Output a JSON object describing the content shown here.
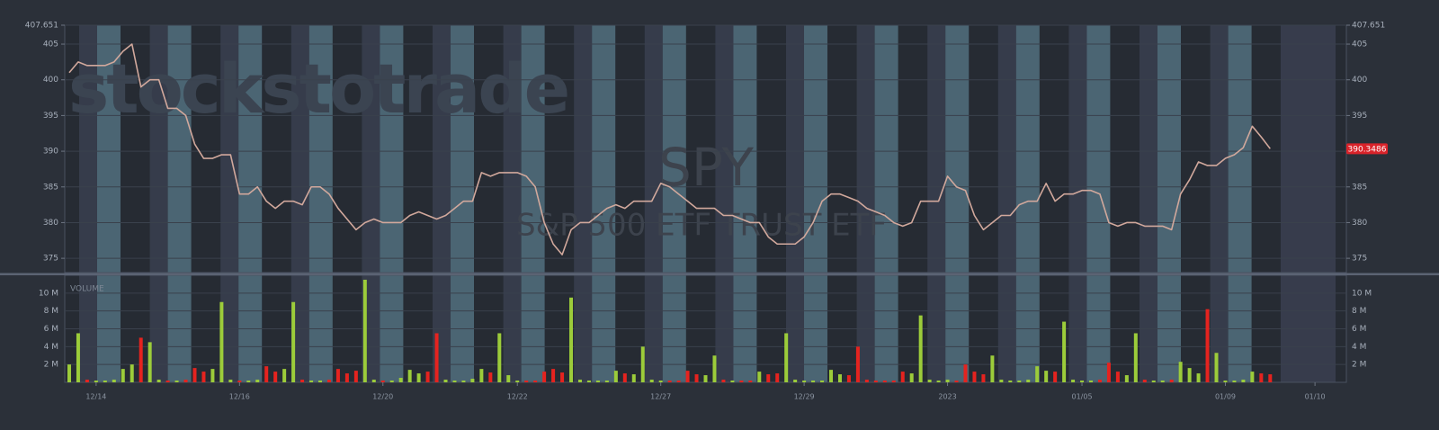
{
  "chart_data": {
    "type": "line",
    "watermark": "stockstotrade",
    "title": "SPY",
    "subtitle": "S&P 500 ETF TRUST ETF",
    "volume_label": "VOLUME",
    "last_value_label": "390.3486",
    "categories": [
      null,
      null,
      null,
      "12/14",
      null,
      null,
      null,
      null,
      null,
      null,
      null,
      null,
      null,
      null,
      null,
      null,
      null,
      null,
      null,
      "12/16",
      null,
      null,
      null,
      null,
      null,
      null,
      null,
      null,
      null,
      null,
      null,
      null,
      null,
      null,
      null,
      "12/20",
      null,
      null,
      null,
      null,
      null,
      null,
      null,
      null,
      null,
      null,
      null,
      null,
      null,
      null,
      "12/22",
      null,
      null,
      null,
      null,
      null,
      null,
      null,
      null,
      null,
      null,
      null,
      null,
      null,
      null,
      null,
      "12/27",
      null,
      null,
      null,
      null,
      null,
      null,
      null,
      null,
      null,
      null,
      null,
      null,
      null,
      null,
      null,
      "12/29",
      null,
      null,
      null,
      null,
      null,
      null,
      null,
      null,
      null,
      null,
      null,
      null,
      null,
      null,
      null,
      "2023",
      null,
      null,
      null,
      null,
      null,
      null,
      null,
      null,
      null,
      null,
      null,
      null,
      null,
      null,
      "01/05",
      null,
      null,
      null,
      null,
      null,
      null,
      null,
      null,
      null,
      null,
      null,
      null,
      null,
      null,
      null,
      "01/09",
      null,
      null,
      null,
      null,
      null,
      null,
      null,
      null,
      null,
      "01/10",
      null,
      null,
      null
    ],
    "series": [
      {
        "name": "SPY",
        "color": "#d1a89c",
        "values": [
          401,
          402.5,
          402,
          402,
          402,
          402.5,
          404,
          405,
          399,
          400,
          400,
          396,
          396,
          395,
          391,
          389,
          389,
          389.5,
          389.5,
          384,
          384,
          385,
          383,
          382,
          383,
          383,
          382.5,
          385,
          385,
          384,
          382,
          380.5,
          379,
          380,
          380.5,
          380,
          380,
          380,
          381,
          381.5,
          381,
          380.5,
          381,
          382,
          383,
          383,
          387,
          386.5,
          387,
          387,
          387,
          386.5,
          385,
          380,
          377,
          375.5,
          379,
          380,
          380,
          381,
          382,
          382.5,
          382,
          383,
          383,
          383,
          385.5,
          385,
          384,
          383,
          382,
          382,
          382,
          381,
          381,
          380.5,
          380,
          380,
          378,
          377,
          377,
          377,
          378,
          380,
          383,
          384,
          384,
          383.5,
          383,
          382,
          381.5,
          381,
          380,
          379.5,
          380,
          383,
          383,
          383,
          386.5,
          385,
          384.5,
          381,
          379,
          380,
          381,
          381,
          382.5,
          383,
          383,
          385.5,
          383,
          384,
          384,
          384.5,
          384.5,
          384,
          380,
          379.5,
          380,
          380,
          379.5,
          379.5,
          379.5,
          379,
          384,
          386,
          388.5,
          388,
          388,
          389,
          389.5,
          390.5,
          393.5,
          392,
          390.3486,
          null,
          null,
          null,
          null,
          null,
          null,
          null,
          null
        ]
      },
      {
        "name": "VOLUME",
        "axis": "y2",
        "up_color": "#9ccc3a",
        "down_color": "#e5231f",
        "values": [
          2,
          5.5,
          0.3,
          0.2,
          0.2,
          0.3,
          1.5,
          2,
          5,
          4.5,
          0.3,
          0.2,
          0.2,
          0.3,
          1.6,
          1.2,
          1.5,
          9,
          0.3,
          0.2,
          0.2,
          0.3,
          1.8,
          1.2,
          1.5,
          9,
          0.3,
          0.2,
          0.2,
          0.3,
          1.5,
          1,
          1.3,
          11.5,
          0.3,
          0.2,
          0.2,
          0.5,
          1.4,
          1,
          1.2,
          5.5,
          0.3,
          0.2,
          0.2,
          0.4,
          1.5,
          1.1,
          5.5,
          0.8,
          0.2,
          0.2,
          0.2,
          1.2,
          1.5,
          1.1,
          9.5,
          0.3,
          0.2,
          0.2,
          0.2,
          1.3,
          1,
          0.9,
          4,
          0.3,
          0.2,
          0.2,
          0.2,
          1.3,
          0.9,
          0.8,
          3,
          0.3,
          0.2,
          0.2,
          0.2,
          1.2,
          0.9,
          1,
          5.5,
          0.3,
          0.2,
          0.2,
          0.2,
          1.4,
          0.9,
          0.8,
          4,
          0.3,
          0.2,
          0.2,
          0.2,
          1.2,
          1,
          7.5,
          0.3,
          0.2,
          0.3,
          0.2,
          2,
          1.2,
          0.9,
          3,
          0.3,
          0.2,
          0.2,
          0.3,
          1.8,
          1.3,
          1.2,
          6.8,
          0.3,
          0.2,
          0.2,
          0.3,
          2.2,
          1.2,
          0.8,
          5.5,
          0.3,
          0.2,
          0.2,
          0.3,
          2.3,
          1.6,
          1,
          8.2,
          3.3,
          0.2,
          0.2,
          0.3,
          1.2,
          1,
          0.9,
          null,
          null,
          null,
          null,
          null,
          null,
          null,
          null
        ]
      }
    ],
    "ylim": [
      373,
      407.651
    ],
    "yticks": [
      375,
      380,
      385,
      390,
      395,
      400,
      405,
      407.651
    ],
    "y2lim": [
      0,
      12
    ],
    "y2ticks": [
      {
        "value": 2,
        "label": "2 M"
      },
      {
        "value": 4,
        "label": "4 M"
      },
      {
        "value": 6,
        "label": "6 M"
      },
      {
        "value": 8,
        "label": "8 M"
      },
      {
        "value": 10,
        "label": "10 M"
      }
    ],
    "grid": true
  }
}
